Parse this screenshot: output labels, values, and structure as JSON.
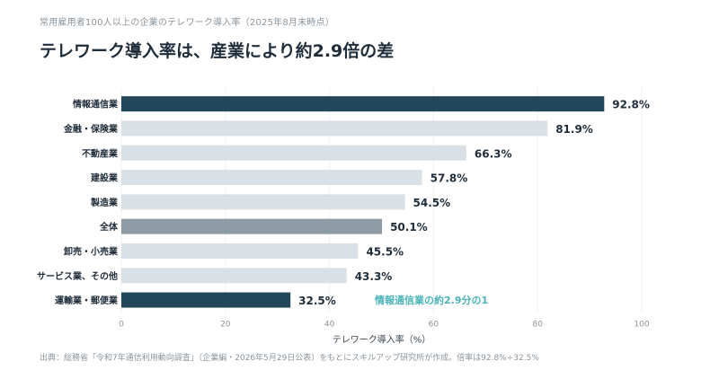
{
  "header": {
    "subtitle": "常用雇用者100人以上の企業のテレワーク導入率（2025年8月末時点）",
    "title": "テレワーク導入率は、産業により約2.9倍の差"
  },
  "chart_data": {
    "type": "bar",
    "orientation": "horizontal",
    "categories": [
      "情報通信業",
      "金融・保険業",
      "不動産業",
      "建設業",
      "製造業",
      "全体",
      "卸売・小売業",
      "サービス業、その他",
      "運輸業・郵便業"
    ],
    "values": [
      92.8,
      81.9,
      66.3,
      57.8,
      54.5,
      50.1,
      45.5,
      43.3,
      32.5
    ],
    "value_labels": [
      "92.8%",
      "81.9%",
      "66.3%",
      "57.8%",
      "54.5%",
      "50.1%",
      "45.5%",
      "43.3%",
      "32.5%"
    ],
    "bar_colors": [
      "#23475a",
      "#d9e1e6",
      "#d9e1e6",
      "#d9e1e6",
      "#d9e1e6",
      "#8d9ba4",
      "#d9e1e6",
      "#d9e1e6",
      "#23475a"
    ],
    "xlim": [
      0,
      100
    ],
    "xticks": [
      "0",
      "20",
      "40",
      "60",
      "80",
      "100"
    ],
    "xlabel": "テレワーク導入率（%）",
    "annotation": "情報通信業の約2.9分の1",
    "annotation_color": "#4ab3b8",
    "grid": "vertical"
  },
  "footer": {
    "source": "出典：総務省「令和7年通信利用動向調査」（企業編・2026年5月29日公表）をもとにスキルアップ研究所が作成。倍率は92.8%÷32.5%"
  }
}
